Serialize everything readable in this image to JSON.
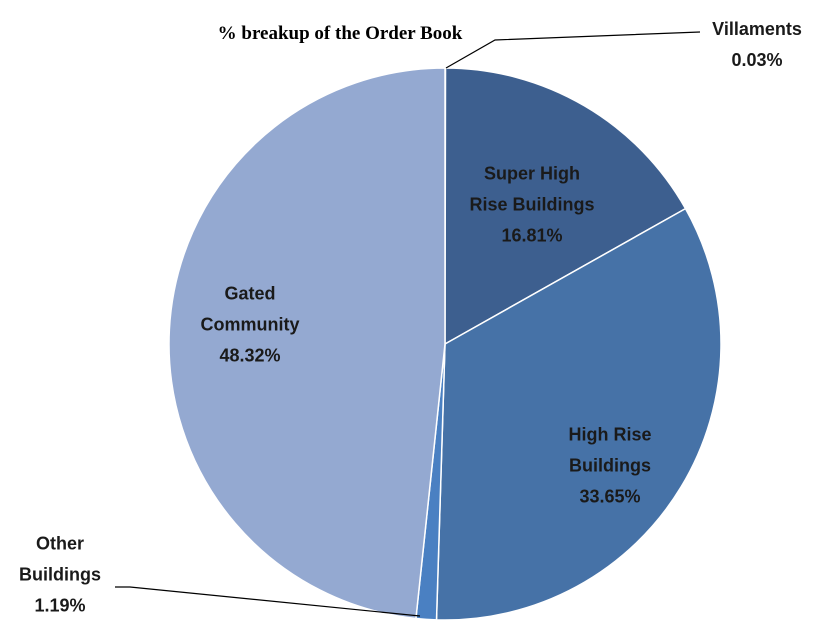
{
  "chart_data": {
    "type": "pie",
    "title": "% breakup of the Order Book",
    "categories": [
      "Villaments",
      "Super High Rise Buildings",
      "High Rise Buildings",
      "Other Buildings",
      "Gated Community"
    ],
    "values": [
      0.03,
      16.81,
      33.65,
      1.19,
      48.32
    ],
    "value_labels": [
      "0.03%",
      "16.81%",
      "33.65%",
      "1.19%",
      "48.32%"
    ],
    "colors": [
      "#3b5a86",
      "#3d5f8f",
      "#4672a7",
      "#4a80c2",
      "#94a9d1"
    ]
  }
}
